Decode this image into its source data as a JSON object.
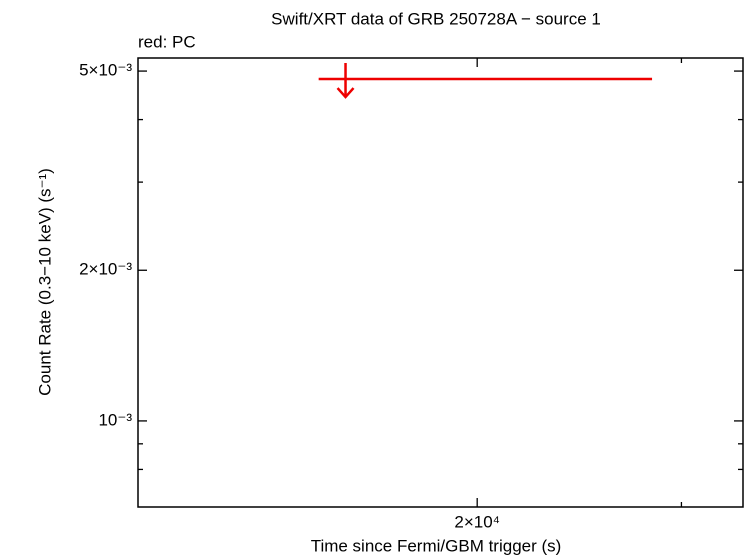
{
  "chart_data": {
    "type": "scatter",
    "title": "Swift/XRT data of GRB 250728A − source 1",
    "subtitle": "red: PC",
    "x_label": "Time since Fermi/GBM trigger (s)",
    "y_label": "Count Rate (0.3−10 keV) (s⁻¹)",
    "x_log": true,
    "y_log": true,
    "xlim": [
      10200,
      33900
    ],
    "ylim": [
      0.000673,
      0.00531
    ],
    "xticks": [
      {
        "value": 20000,
        "label": "2×10⁴"
      }
    ],
    "x_minor_ticks": [
      30000
    ],
    "yticks": [
      {
        "value": 0.005,
        "label": "5×10⁻³"
      },
      {
        "value": 0.002,
        "label": "2×10⁻³"
      },
      {
        "value": 0.001,
        "label": "10⁻³"
      }
    ],
    "y_minor_ticks": [
      0.0008,
      0.0009,
      0.003,
      0.004
    ],
    "series": [
      {
        "name": "PC",
        "color": "#ee0000",
        "upper_limit": true,
        "x": [
          15400
        ],
        "x_err_minus": [
          800
        ],
        "x_err_plus": [
          12900
        ],
        "values": [
          0.00482
        ]
      }
    ]
  }
}
